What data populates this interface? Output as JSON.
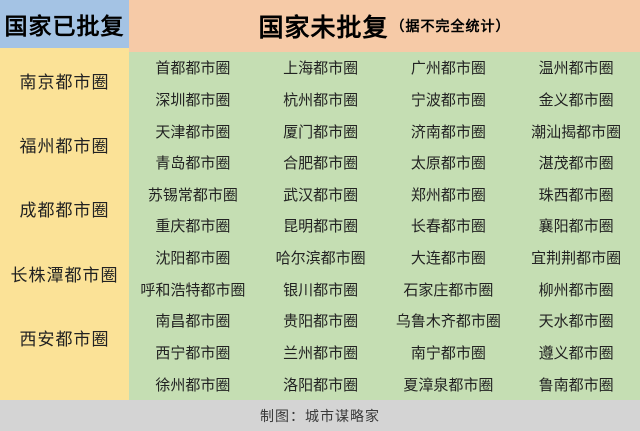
{
  "chart_data": {
    "type": "table",
    "approved": {
      "header": "国家已批复",
      "items": [
        "南京都市圈",
        "福州都市圈",
        "成都都市圈",
        "长株潭都市圈",
        "西安都市圈"
      ]
    },
    "unapproved": {
      "header": "国家未批复",
      "header_note": "（据不完全统计）",
      "rows": [
        [
          "首都都市圈",
          "上海都市圈",
          "广州都市圈",
          "温州都市圈"
        ],
        [
          "深圳都市圈",
          "杭州都市圈",
          "宁波都市圈",
          "金义都市圈"
        ],
        [
          "天津都市圈",
          "厦门都市圈",
          "济南都市圈",
          "潮汕揭都市圈"
        ],
        [
          "青岛都市圈",
          "合肥都市圈",
          "太原都市圈",
          "湛茂都市圈"
        ],
        [
          "苏锡常都市圈",
          "武汉都市圈",
          "郑州都市圈",
          "珠西都市圈"
        ],
        [
          "重庆都市圈",
          "昆明都市圈",
          "长春都市圈",
          "襄阳都市圈"
        ],
        [
          "沈阳都市圈",
          "哈尔滨都市圈",
          "大连都市圈",
          "宜荆荆都市圈"
        ],
        [
          "呼和浩特都市圈",
          "银川都市圈",
          "石家庄都市圈",
          "柳州都市圈"
        ],
        [
          "南昌都市圈",
          "贵阳都市圈",
          "乌鲁木齐都市圈",
          "天水都市圈"
        ],
        [
          "西宁都市圈",
          "兰州都市圈",
          "南宁都市圈",
          "遵义都市圈"
        ],
        [
          "徐州都市圈",
          "洛阳都市圈",
          "夏漳泉都市圈",
          "鲁南都市圈"
        ]
      ]
    },
    "footer_credit": "制图：城市谋略家"
  },
  "colors": {
    "approved_header_bg": "#a4c3e4",
    "approved_body_bg": "#fbe297",
    "unapproved_header_bg": "#f6caa7",
    "unapproved_body_bg": "#c5deb3",
    "footer_bg": "#d4d4d4",
    "text": "#222222"
  }
}
